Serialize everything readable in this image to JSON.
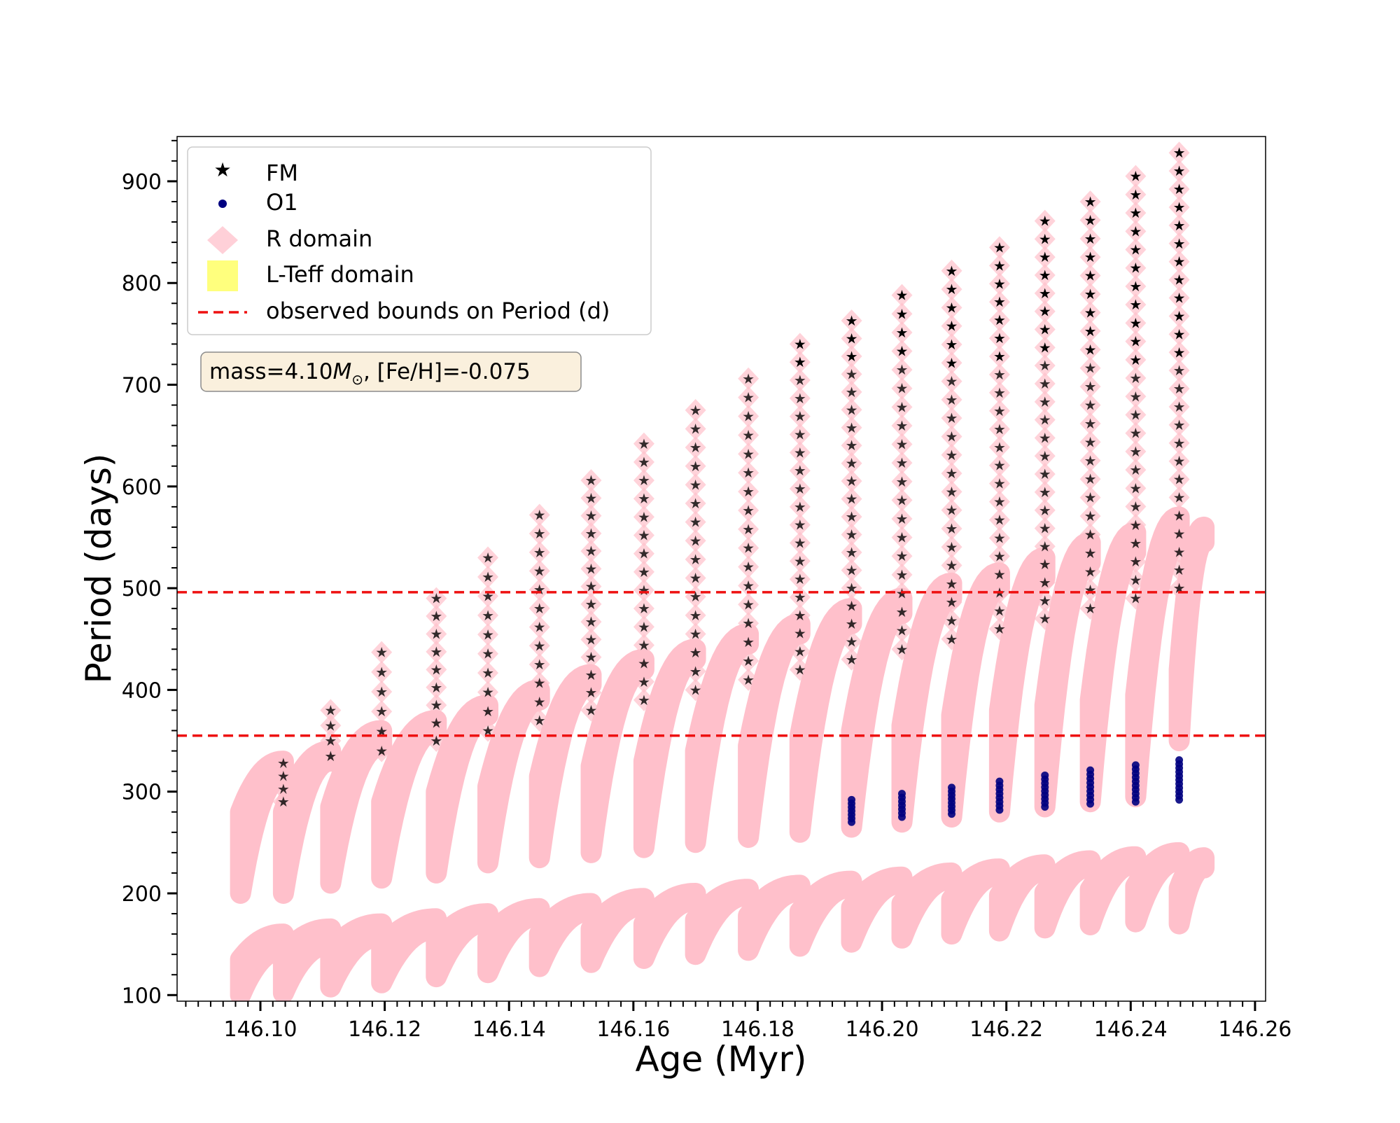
{
  "chart_data": {
    "type": "scatter",
    "xlabel": "Age (Myr)",
    "ylabel": "Period (days)",
    "xlim": [
      146.0866,
      146.2617
    ],
    "ylim": [
      94,
      944
    ],
    "x_ticks": [
      "146.10",
      "146.12",
      "146.14",
      "146.16",
      "146.18",
      "146.20",
      "146.22",
      "146.24",
      "146.26"
    ],
    "y_ticks": [
      "100",
      "200",
      "300",
      "400",
      "500",
      "600",
      "700",
      "800",
      "900"
    ],
    "legend": {
      "position": "top-left",
      "entries": [
        {
          "label": "FM",
          "marker": "star",
          "color": "#000000"
        },
        {
          "label": "O1",
          "marker": "circle",
          "color": "#000080"
        },
        {
          "label": "R domain",
          "marker": "diamond",
          "color": "#ffc0cb"
        },
        {
          "label": "L-Teff domain",
          "marker": "square",
          "color": "#ffff66"
        },
        {
          "label": "observed bounds on Period (d)",
          "marker": "dashed-line",
          "color": "#ee1111"
        }
      ]
    },
    "annotation": {
      "prefix": "mass=4.10",
      "symbol": "M",
      "subscript": "⊙",
      "suffix": ", [Fe/H]=-0.075"
    },
    "observed_bounds": [
      355,
      496
    ],
    "pulse_ages": [
      146.0968,
      146.1037,
      146.1113,
      146.1195,
      146.1283,
      146.1366,
      146.1449,
      146.1532,
      146.1617,
      146.17,
      146.1785,
      146.1868,
      146.1951,
      146.2032,
      146.2112,
      146.2189,
      146.2262,
      146.2335,
      146.2408,
      146.2478,
      146.2518
    ],
    "fm_band": {
      "name": "FM",
      "segments": [
        {
          "x0": 146.0968,
          "x1": 146.1037,
          "bottom_start": 200,
          "bottom_end": 315,
          "top_start": 280,
          "top_end": 330
        },
        {
          "x0": 146.1037,
          "x1": 146.1113,
          "bottom_start": 200,
          "bottom_end": 330,
          "top_start": 280,
          "top_end": 340
        },
        {
          "x0": 146.1113,
          "x1": 146.1195,
          "bottom_start": 210,
          "bottom_end": 345,
          "top_start": 285,
          "top_end": 360
        },
        {
          "x0": 146.1195,
          "x1": 146.1283,
          "bottom_start": 215,
          "bottom_end": 360,
          "top_start": 290,
          "top_end": 370
        },
        {
          "x0": 146.1283,
          "x1": 146.1366,
          "bottom_start": 220,
          "bottom_end": 375,
          "top_start": 300,
          "top_end": 385
        },
        {
          "x0": 146.1366,
          "x1": 146.1449,
          "bottom_start": 230,
          "bottom_end": 390,
          "top_start": 305,
          "top_end": 400
        },
        {
          "x0": 146.1449,
          "x1": 146.1532,
          "bottom_start": 235,
          "bottom_end": 405,
          "top_start": 315,
          "top_end": 415
        },
        {
          "x0": 146.1532,
          "x1": 146.1617,
          "bottom_start": 240,
          "bottom_end": 420,
          "top_start": 325,
          "top_end": 430
        },
        {
          "x0": 146.1617,
          "x1": 146.17,
          "bottom_start": 245,
          "bottom_end": 430,
          "top_start": 330,
          "top_end": 440
        },
        {
          "x0": 146.17,
          "x1": 146.1785,
          "bottom_start": 250,
          "bottom_end": 445,
          "top_start": 340,
          "top_end": 455
        },
        {
          "x0": 146.1785,
          "x1": 146.1868,
          "bottom_start": 255,
          "bottom_end": 455,
          "top_start": 345,
          "top_end": 465
        },
        {
          "x0": 146.1868,
          "x1": 146.1951,
          "bottom_start": 260,
          "bottom_end": 465,
          "top_start": 355,
          "top_end": 480
        },
        {
          "x0": 146.1951,
          "x1": 146.2032,
          "bottom_start": 265,
          "bottom_end": 475,
          "top_start": 360,
          "top_end": 490
        },
        {
          "x0": 146.2032,
          "x1": 146.2112,
          "bottom_start": 270,
          "bottom_end": 490,
          "top_start": 365,
          "top_end": 505
        },
        {
          "x0": 146.2112,
          "x1": 146.2189,
          "bottom_start": 275,
          "bottom_end": 500,
          "top_start": 375,
          "top_end": 515
        },
        {
          "x0": 146.2189,
          "x1": 146.2262,
          "bottom_start": 280,
          "bottom_end": 510,
          "top_start": 380,
          "top_end": 530
        },
        {
          "x0": 146.2262,
          "x1": 146.2335,
          "bottom_start": 285,
          "bottom_end": 525,
          "top_start": 385,
          "top_end": 545
        },
        {
          "x0": 146.2335,
          "x1": 146.2408,
          "bottom_start": 290,
          "bottom_end": 535,
          "top_start": 390,
          "top_end": 555
        },
        {
          "x0": 146.2408,
          "x1": 146.2478,
          "bottom_start": 295,
          "bottom_end": 545,
          "top_start": 395,
          "top_end": 570
        },
        {
          "x0": 146.2478,
          "x1": 146.2518,
          "bottom_start": 350,
          "bottom_end": 545,
          "top_start": 420,
          "top_end": 560
        }
      ]
    },
    "o1_band": {
      "name": "O1",
      "segments": [
        {
          "x0": 146.0968,
          "x1": 146.1037,
          "bottom_start": 100,
          "bottom_end": 145,
          "top_start": 135,
          "top_end": 160
        },
        {
          "x0": 146.1037,
          "x1": 146.1113,
          "bottom_start": 102,
          "bottom_end": 150,
          "top_start": 140,
          "top_end": 165
        },
        {
          "x0": 146.1113,
          "x1": 146.1195,
          "bottom_start": 108,
          "bottom_end": 158,
          "top_start": 143,
          "top_end": 170
        },
        {
          "x0": 146.1195,
          "x1": 146.1283,
          "bottom_start": 112,
          "bottom_end": 165,
          "top_start": 148,
          "top_end": 175
        },
        {
          "x0": 146.1283,
          "x1": 146.1366,
          "bottom_start": 118,
          "bottom_end": 172,
          "top_start": 152,
          "top_end": 180
        },
        {
          "x0": 146.1366,
          "x1": 146.1449,
          "bottom_start": 122,
          "bottom_end": 178,
          "top_start": 156,
          "top_end": 185
        },
        {
          "x0": 146.1449,
          "x1": 146.1532,
          "bottom_start": 128,
          "bottom_end": 183,
          "top_start": 160,
          "top_end": 190
        },
        {
          "x0": 146.1532,
          "x1": 146.1617,
          "bottom_start": 132,
          "bottom_end": 188,
          "top_start": 165,
          "top_end": 195
        },
        {
          "x0": 146.1617,
          "x1": 146.17,
          "bottom_start": 136,
          "bottom_end": 193,
          "top_start": 170,
          "top_end": 200
        },
        {
          "x0": 146.17,
          "x1": 146.1785,
          "bottom_start": 140,
          "bottom_end": 198,
          "top_start": 174,
          "top_end": 204
        },
        {
          "x0": 146.1785,
          "x1": 146.1868,
          "bottom_start": 144,
          "bottom_end": 202,
          "top_start": 178,
          "top_end": 208
        },
        {
          "x0": 146.1868,
          "x1": 146.1951,
          "bottom_start": 148,
          "bottom_end": 206,
          "top_start": 182,
          "top_end": 212
        },
        {
          "x0": 146.1951,
          "x1": 146.2032,
          "bottom_start": 152,
          "bottom_end": 210,
          "top_start": 186,
          "top_end": 216
        },
        {
          "x0": 146.2032,
          "x1": 146.2112,
          "bottom_start": 156,
          "bottom_end": 214,
          "top_start": 190,
          "top_end": 220
        },
        {
          "x0": 146.2112,
          "x1": 146.2189,
          "bottom_start": 160,
          "bottom_end": 218,
          "top_start": 194,
          "top_end": 224
        },
        {
          "x0": 146.2189,
          "x1": 146.2262,
          "bottom_start": 163,
          "bottom_end": 222,
          "top_start": 198,
          "top_end": 228
        },
        {
          "x0": 146.2262,
          "x1": 146.2335,
          "bottom_start": 166,
          "bottom_end": 226,
          "top_start": 201,
          "top_end": 232
        },
        {
          "x0": 146.2335,
          "x1": 146.2408,
          "bottom_start": 169,
          "bottom_end": 229,
          "top_start": 204,
          "top_end": 236
        },
        {
          "x0": 146.2408,
          "x1": 146.2478,
          "bottom_start": 172,
          "bottom_end": 232,
          "top_start": 207,
          "top_end": 240
        },
        {
          "x0": 146.2478,
          "x1": 146.2518,
          "bottom_start": 170,
          "bottom_end": 225,
          "top_start": 205,
          "top_end": 235
        }
      ]
    },
    "fm_pulse_columns": [
      {
        "x": 146.1037,
        "y_min": 290,
        "y_max": 328
      },
      {
        "x": 146.1113,
        "y_min": 335,
        "y_max": 380
      },
      {
        "x": 146.1195,
        "y_min": 340,
        "y_max": 437
      },
      {
        "x": 146.1283,
        "y_min": 350,
        "y_max": 490
      },
      {
        "x": 146.1366,
        "y_min": 360,
        "y_max": 530
      },
      {
        "x": 146.1449,
        "y_min": 370,
        "y_max": 572
      },
      {
        "x": 146.1532,
        "y_min": 380,
        "y_max": 606
      },
      {
        "x": 146.1617,
        "y_min": 390,
        "y_max": 642
      },
      {
        "x": 146.17,
        "y_min": 400,
        "y_max": 675
      },
      {
        "x": 146.1785,
        "y_min": 410,
        "y_max": 706
      },
      {
        "x": 146.1868,
        "y_min": 420,
        "y_max": 740
      },
      {
        "x": 146.1951,
        "y_min": 430,
        "y_max": 763
      },
      {
        "x": 146.2032,
        "y_min": 440,
        "y_max": 788
      },
      {
        "x": 146.2112,
        "y_min": 450,
        "y_max": 812
      },
      {
        "x": 146.2189,
        "y_min": 460,
        "y_max": 835
      },
      {
        "x": 146.2262,
        "y_min": 470,
        "y_max": 861
      },
      {
        "x": 146.2335,
        "y_min": 480,
        "y_max": 880
      },
      {
        "x": 146.2408,
        "y_min": 490,
        "y_max": 905
      },
      {
        "x": 146.2478,
        "y_min": 500,
        "y_max": 928
      }
    ],
    "o1_pulse_columns": [
      {
        "x": 146.1951,
        "y_min": 270,
        "y_max": 292
      },
      {
        "x": 146.2032,
        "y_min": 275,
        "y_max": 298
      },
      {
        "x": 146.2112,
        "y_min": 278,
        "y_max": 304
      },
      {
        "x": 146.2189,
        "y_min": 282,
        "y_max": 310
      },
      {
        "x": 146.2262,
        "y_min": 285,
        "y_max": 316
      },
      {
        "x": 146.2335,
        "y_min": 288,
        "y_max": 321
      },
      {
        "x": 146.2408,
        "y_min": 290,
        "y_max": 326
      },
      {
        "x": 146.2478,
        "y_min": 292,
        "y_max": 331
      }
    ]
  }
}
